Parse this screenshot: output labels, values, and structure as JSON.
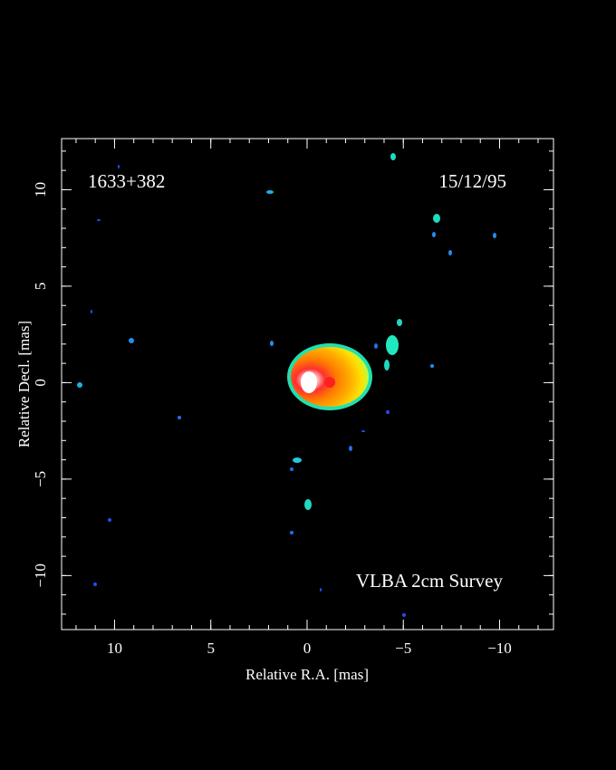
{
  "chart_data": {
    "type": "image",
    "annotations": [
      "1633+382",
      "15/12/95",
      "VLBA 2cm Survey"
    ],
    "xlabel": "Relative R.A. [mas]",
    "ylabel": "Relative Decl. [mas]",
    "xlim": [
      12.75,
      -12.8
    ],
    "ylim": [
      -12.8,
      12.65
    ],
    "xticks": [
      10,
      5,
      0,
      {
        "value": -5,
        "label": "−5"
      },
      {
        "value": -10,
        "label": "−10"
      }
    ],
    "yticks": [
      {
        "value": -10,
        "label": "−10"
      },
      {
        "value": -5,
        "label": "−5"
      },
      0,
      5,
      10
    ],
    "xminorticks": [
      12,
      11,
      10,
      9,
      8,
      7,
      6,
      5,
      4,
      3,
      2,
      1,
      0,
      -1,
      -2,
      -3,
      -4,
      -5,
      -6,
      -7,
      -8,
      -9,
      -10,
      -11,
      -12
    ],
    "yminorticks": [
      -12,
      -11,
      -10,
      -9,
      -8,
      -7,
      -6,
      -5,
      -4,
      -3,
      -2,
      -1,
      0,
      1,
      2,
      3,
      4,
      5,
      6,
      7,
      8,
      9,
      10,
      11,
      12
    ]
  }
}
